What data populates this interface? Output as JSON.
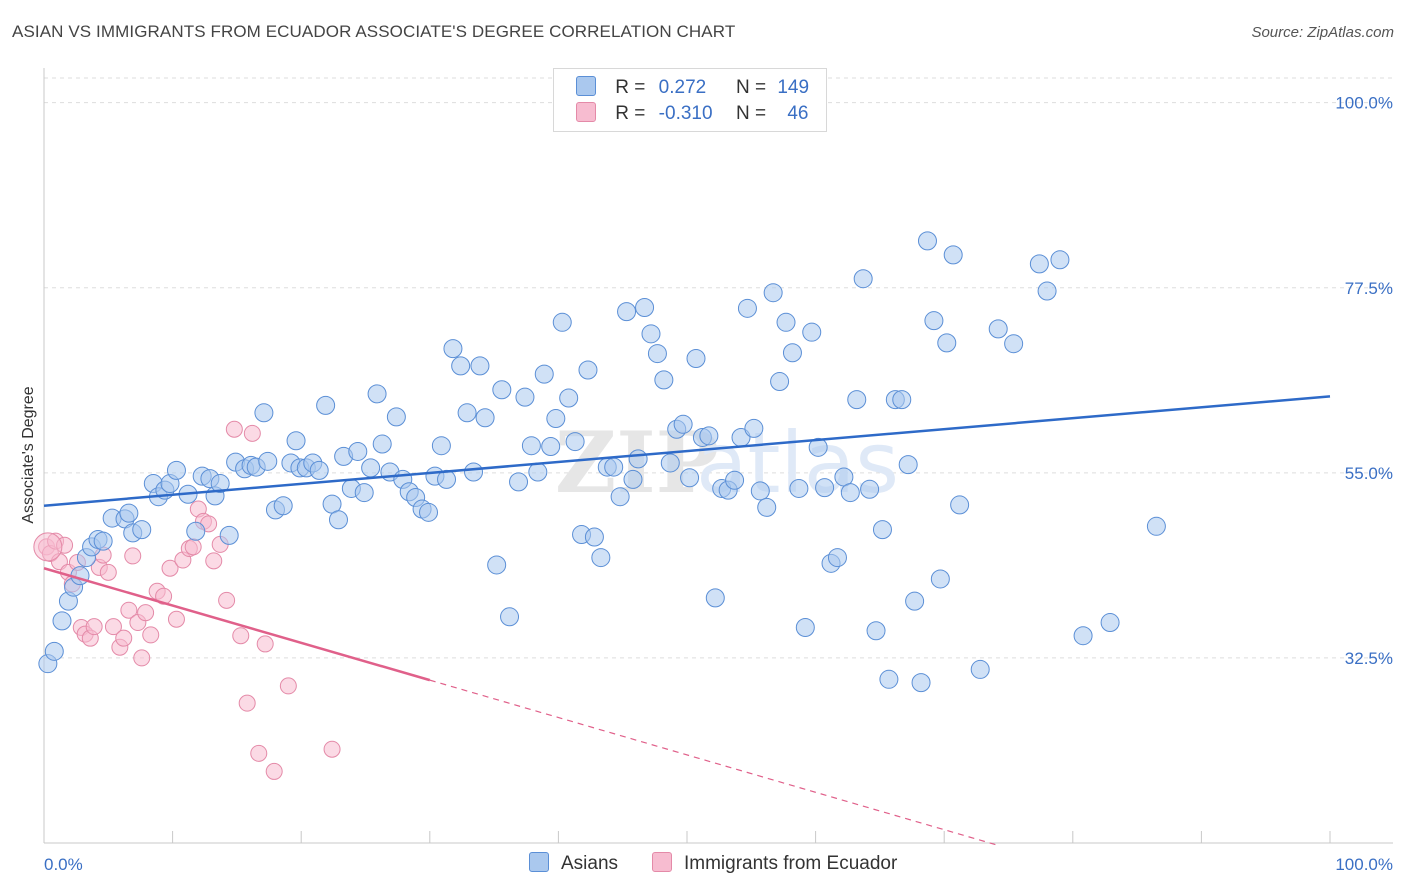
{
  "header": {
    "title": "ASIAN VS IMMIGRANTS FROM ECUADOR ASSOCIATE'S DEGREE CORRELATION CHART",
    "source": "Source: ZipAtlas.com"
  },
  "legend": {
    "rows": [
      {
        "r_label": "R =",
        "r_value": "0.272",
        "n_label": "N =",
        "n_value": "149"
      },
      {
        "r_label": "R =",
        "r_value": "-0.310",
        "n_label": "N =",
        "n_value": "46"
      }
    ]
  },
  "colors": {
    "asians_fill": "#aac8ee",
    "asians_stroke": "#5b8fd6",
    "asians_line": "#2e6ac8",
    "ecuador_fill": "#f7bcd0",
    "ecuador_stroke": "#e48aa8",
    "ecuador_line": "#e0608a"
  },
  "chart_data": {
    "type": "scatter",
    "title": "ASIAN VS IMMIGRANTS FROM ECUADOR ASSOCIATE'S DEGREE CORRELATION CHART",
    "xlabel": "",
    "ylabel": "Associate's Degree",
    "xlim": [
      0,
      100
    ],
    "ylim": [
      10,
      103
    ],
    "x_tick_labels": [
      "0.0%",
      "100.0%"
    ],
    "y_tick_labels": [
      "32.5%",
      "55.0%",
      "77.5%",
      "100.0%"
    ],
    "y_ticks": [
      32.5,
      55.0,
      77.5,
      100.0
    ],
    "grid": true,
    "legend_position": "bottom-center",
    "watermark": "ZIPatlas",
    "series": [
      {
        "name": "Asians",
        "trend": {
          "x": [
            0,
            100
          ],
          "y": [
            51.0,
            64.3
          ],
          "style": "solid"
        },
        "points": [
          [
            0.3,
            31.8
          ],
          [
            0.8,
            33.3
          ],
          [
            1.4,
            37.0
          ],
          [
            1.9,
            39.4
          ],
          [
            2.3,
            41.1
          ],
          [
            2.8,
            42.5
          ],
          [
            3.3,
            44.7
          ],
          [
            3.7,
            46.0
          ],
          [
            4.2,
            46.9
          ],
          [
            4.6,
            46.7
          ],
          [
            5.3,
            49.5
          ],
          [
            6.3,
            49.4
          ],
          [
            6.6,
            50.1
          ],
          [
            6.9,
            47.7
          ],
          [
            7.6,
            48.1
          ],
          [
            8.5,
            53.7
          ],
          [
            8.9,
            52.1
          ],
          [
            9.4,
            52.9
          ],
          [
            9.8,
            53.7
          ],
          [
            10.3,
            55.3
          ],
          [
            11.2,
            52.4
          ],
          [
            11.8,
            47.9
          ],
          [
            12.3,
            54.6
          ],
          [
            12.9,
            54.3
          ],
          [
            13.3,
            52.2
          ],
          [
            13.7,
            53.7
          ],
          [
            14.4,
            47.4
          ],
          [
            14.9,
            56.3
          ],
          [
            15.6,
            55.5
          ],
          [
            16.1,
            55.9
          ],
          [
            16.5,
            55.7
          ],
          [
            17.1,
            62.3
          ],
          [
            17.4,
            56.4
          ],
          [
            18.0,
            50.5
          ],
          [
            18.6,
            51.0
          ],
          [
            19.2,
            56.2
          ],
          [
            19.6,
            58.9
          ],
          [
            19.9,
            55.6
          ],
          [
            20.4,
            55.6
          ],
          [
            20.9,
            56.2
          ],
          [
            21.4,
            55.3
          ],
          [
            21.9,
            63.2
          ],
          [
            22.4,
            51.2
          ],
          [
            22.9,
            49.3
          ],
          [
            23.3,
            57.0
          ],
          [
            23.9,
            53.1
          ],
          [
            24.4,
            57.6
          ],
          [
            24.9,
            52.6
          ],
          [
            25.4,
            55.6
          ],
          [
            25.9,
            64.6
          ],
          [
            26.3,
            58.5
          ],
          [
            26.9,
            55.1
          ],
          [
            27.4,
            61.8
          ],
          [
            27.9,
            54.2
          ],
          [
            28.4,
            52.7
          ],
          [
            28.9,
            52.0
          ],
          [
            29.4,
            50.6
          ],
          [
            29.9,
            50.2
          ],
          [
            30.4,
            54.6
          ],
          [
            30.9,
            58.3
          ],
          [
            31.3,
            54.2
          ],
          [
            31.8,
            70.1
          ],
          [
            32.4,
            68.0
          ],
          [
            32.9,
            62.3
          ],
          [
            33.4,
            55.1
          ],
          [
            33.9,
            68.0
          ],
          [
            34.3,
            61.7
          ],
          [
            35.2,
            43.8
          ],
          [
            35.6,
            65.1
          ],
          [
            36.2,
            37.5
          ],
          [
            36.9,
            53.9
          ],
          [
            37.4,
            64.2
          ],
          [
            37.9,
            58.3
          ],
          [
            38.4,
            55.1
          ],
          [
            38.9,
            67.0
          ],
          [
            39.4,
            58.2
          ],
          [
            39.8,
            61.6
          ],
          [
            40.3,
            73.3
          ],
          [
            40.8,
            64.1
          ],
          [
            41.3,
            58.8
          ],
          [
            41.8,
            47.5
          ],
          [
            42.3,
            67.5
          ],
          [
            42.8,
            47.2
          ],
          [
            43.3,
            44.7
          ],
          [
            43.8,
            55.7
          ],
          [
            44.3,
            55.7
          ],
          [
            44.8,
            52.1
          ],
          [
            45.3,
            74.6
          ],
          [
            45.8,
            54.2
          ],
          [
            46.2,
            56.7
          ],
          [
            46.7,
            75.1
          ],
          [
            47.2,
            71.9
          ],
          [
            47.7,
            69.5
          ],
          [
            48.2,
            66.3
          ],
          [
            48.7,
            56.2
          ],
          [
            49.2,
            60.3
          ],
          [
            49.7,
            60.9
          ],
          [
            50.2,
            54.4
          ],
          [
            50.7,
            68.9
          ],
          [
            51.2,
            59.3
          ],
          [
            51.7,
            59.5
          ],
          [
            52.2,
            39.8
          ],
          [
            52.7,
            53.1
          ],
          [
            53.2,
            52.9
          ],
          [
            53.7,
            54.1
          ],
          [
            54.2,
            59.3
          ],
          [
            54.7,
            75.0
          ],
          [
            55.2,
            60.4
          ],
          [
            55.7,
            52.8
          ],
          [
            56.2,
            50.8
          ],
          [
            56.7,
            76.9
          ],
          [
            57.2,
            66.1
          ],
          [
            57.7,
            73.3
          ],
          [
            58.2,
            69.6
          ],
          [
            58.7,
            53.1
          ],
          [
            59.2,
            36.2
          ],
          [
            59.7,
            72.1
          ],
          [
            60.2,
            58.1
          ],
          [
            60.7,
            53.2
          ],
          [
            61.2,
            44.0
          ],
          [
            61.7,
            44.7
          ],
          [
            62.2,
            54.5
          ],
          [
            62.7,
            52.6
          ],
          [
            63.2,
            63.9
          ],
          [
            63.7,
            78.6
          ],
          [
            64.2,
            53.0
          ],
          [
            64.7,
            35.8
          ],
          [
            65.2,
            48.1
          ],
          [
            65.7,
            29.9
          ],
          [
            66.2,
            63.9
          ],
          [
            66.7,
            63.9
          ],
          [
            67.2,
            56.0
          ],
          [
            67.7,
            39.4
          ],
          [
            68.2,
            29.5
          ],
          [
            68.7,
            83.2
          ],
          [
            69.2,
            73.5
          ],
          [
            69.7,
            42.1
          ],
          [
            70.2,
            70.8
          ],
          [
            70.7,
            81.5
          ],
          [
            71.2,
            51.1
          ],
          [
            72.8,
            31.1
          ],
          [
            74.2,
            72.5
          ],
          [
            75.4,
            70.7
          ],
          [
            77.4,
            80.4
          ],
          [
            78.0,
            77.1
          ],
          [
            79.0,
            80.9
          ],
          [
            80.8,
            35.2
          ],
          [
            82.9,
            36.8
          ],
          [
            86.5,
            48.5
          ]
        ]
      },
      {
        "name": "Immigrants from Ecuador",
        "trend": {
          "x": [
            0,
            30
          ],
          "y": [
            43.4,
            29.8
          ],
          "style": "solid",
          "extension": {
            "x": [
              30,
              74
            ],
            "y": [
              29.8,
              9.8
            ],
            "style": "dashed"
          }
        },
        "points": [
          [
            0.2,
            46.0
          ],
          [
            0.5,
            45.2
          ],
          [
            0.9,
            46.7
          ],
          [
            1.2,
            44.2
          ],
          [
            1.6,
            46.2
          ],
          [
            1.9,
            42.9
          ],
          [
            2.2,
            41.5
          ],
          [
            2.6,
            44.1
          ],
          [
            2.9,
            36.2
          ],
          [
            3.2,
            35.4
          ],
          [
            3.6,
            34.9
          ],
          [
            3.9,
            36.3
          ],
          [
            4.3,
            43.5
          ],
          [
            4.6,
            45.0
          ],
          [
            5.0,
            42.9
          ],
          [
            5.4,
            36.3
          ],
          [
            5.9,
            33.8
          ],
          [
            6.2,
            34.9
          ],
          [
            6.6,
            38.3
          ],
          [
            6.9,
            44.9
          ],
          [
            7.3,
            36.8
          ],
          [
            7.6,
            32.5
          ],
          [
            7.9,
            38.0
          ],
          [
            8.3,
            35.3
          ],
          [
            8.8,
            40.6
          ],
          [
            9.3,
            40.0
          ],
          [
            9.8,
            43.4
          ],
          [
            10.3,
            37.2
          ],
          [
            10.8,
            44.4
          ],
          [
            11.3,
            45.8
          ],
          [
            11.6,
            46.0
          ],
          [
            12.0,
            50.6
          ],
          [
            12.4,
            49.1
          ],
          [
            12.8,
            48.8
          ],
          [
            13.2,
            44.3
          ],
          [
            13.7,
            46.3
          ],
          [
            14.2,
            39.5
          ],
          [
            14.8,
            60.3
          ],
          [
            15.3,
            35.2
          ],
          [
            15.8,
            27.0
          ],
          [
            16.2,
            59.8
          ],
          [
            16.7,
            20.9
          ],
          [
            17.2,
            34.2
          ],
          [
            17.9,
            18.7
          ],
          [
            19.0,
            29.1
          ],
          [
            22.4,
            21.4
          ]
        ]
      }
    ]
  }
}
